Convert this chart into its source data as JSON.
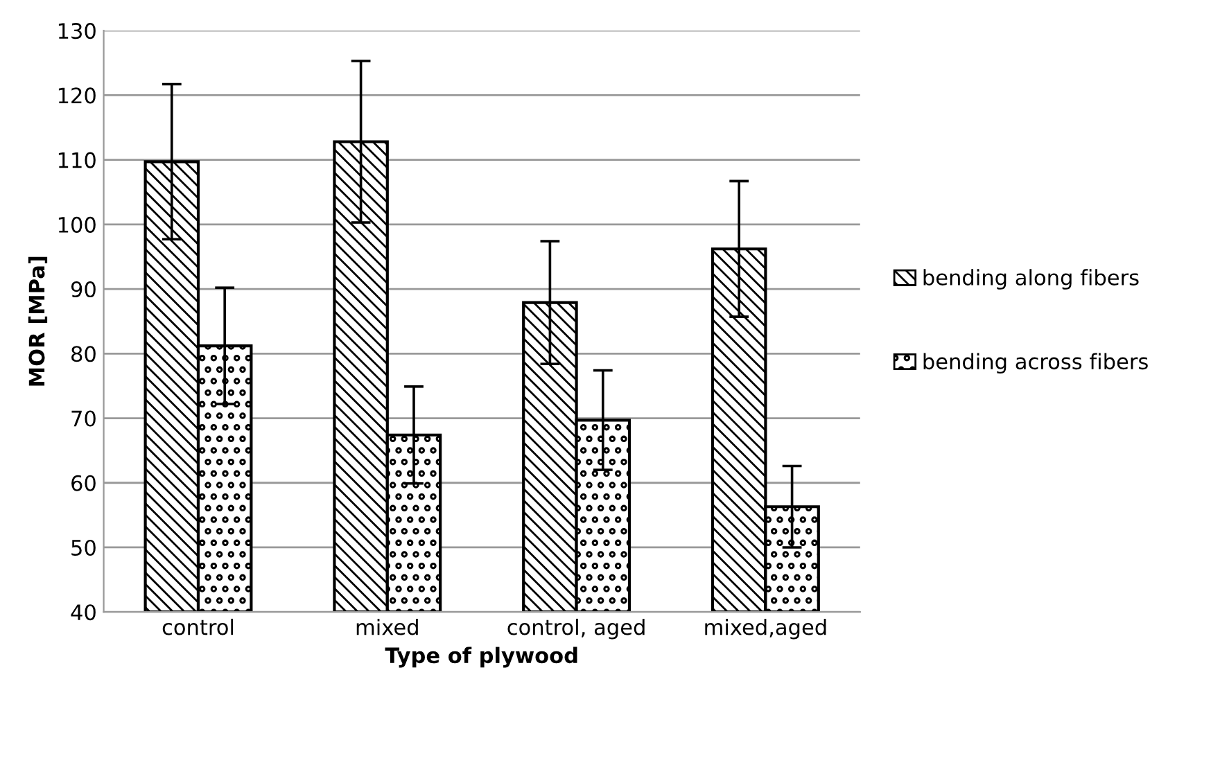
{
  "chart_data": {
    "type": "bar",
    "xlabel": "Type of plywood",
    "ylabel": "MOR [MPa]",
    "categories": [
      "control",
      "mixed",
      "control, aged",
      "mixed,aged"
    ],
    "series": [
      {
        "name": "bending along fibers",
        "color": "#000000",
        "values": [
          109.7,
          112.8,
          87.9,
          96.2
        ],
        "errors": [
          12,
          12.5,
          9.5,
          10.5
        ]
      },
      {
        "name": "bending across fibers",
        "color": "#000000",
        "values": [
          81.2,
          67.4,
          69.7,
          56.3
        ],
        "errors": [
          9,
          7.5,
          7.7,
          6.3
        ]
      }
    ],
    "ylim": [
      40,
      130
    ],
    "yticks": [
      40,
      50,
      60,
      70,
      80,
      90,
      100,
      110,
      120,
      130
    ],
    "grid": "y",
    "legend": "right"
  }
}
